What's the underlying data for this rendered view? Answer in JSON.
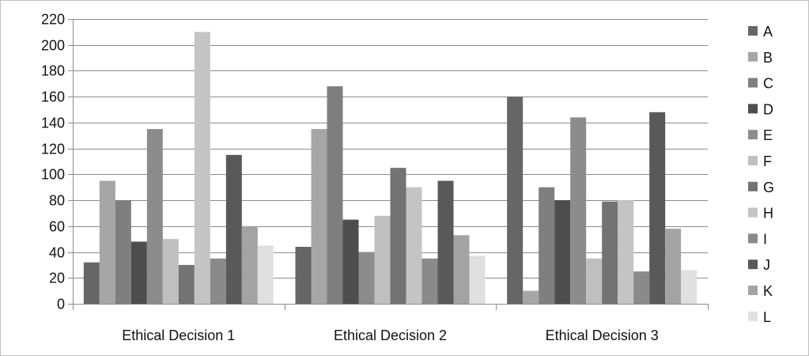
{
  "chart_data": {
    "type": "bar",
    "categories": [
      "Ethical Decision 1",
      "Ethical Decision 2",
      "Ethical Decision 3"
    ],
    "series": [
      {
        "name": "A",
        "values": [
          32,
          44,
          160
        ],
        "color": "#666666"
      },
      {
        "name": "B",
        "values": [
          95,
          135,
          10
        ],
        "color": "#a6a6a6"
      },
      {
        "name": "C",
        "values": [
          80,
          168,
          90
        ],
        "color": "#7f7f7f"
      },
      {
        "name": "D",
        "values": [
          48,
          65,
          80
        ],
        "color": "#4d4d4d"
      },
      {
        "name": "E",
        "values": [
          135,
          40,
          144
        ],
        "color": "#8c8c8c"
      },
      {
        "name": "F",
        "values": [
          50,
          68,
          35
        ],
        "color": "#bfbfbf"
      },
      {
        "name": "G",
        "values": [
          30,
          105,
          79
        ],
        "color": "#737373"
      },
      {
        "name": "H",
        "values": [
          210,
          90,
          80
        ],
        "color": "#c4c4c4"
      },
      {
        "name": "I",
        "values": [
          35,
          35,
          25
        ],
        "color": "#8a8a8a"
      },
      {
        "name": "J",
        "values": [
          115,
          95,
          148
        ],
        "color": "#595959"
      },
      {
        "name": "K",
        "values": [
          60,
          53,
          58
        ],
        "color": "#a3a3a3"
      },
      {
        "name": "L",
        "values": [
          45,
          37,
          26
        ],
        "color": "#e0e0e0"
      }
    ],
    "title": "",
    "xlabel": "",
    "ylabel": "",
    "ylim": [
      0,
      220
    ],
    "yticks": [
      "0",
      "20",
      "40",
      "60",
      "80",
      "100",
      "120",
      "140",
      "160",
      "180",
      "200",
      "220"
    ],
    "grid": true,
    "legend_position": "right"
  }
}
